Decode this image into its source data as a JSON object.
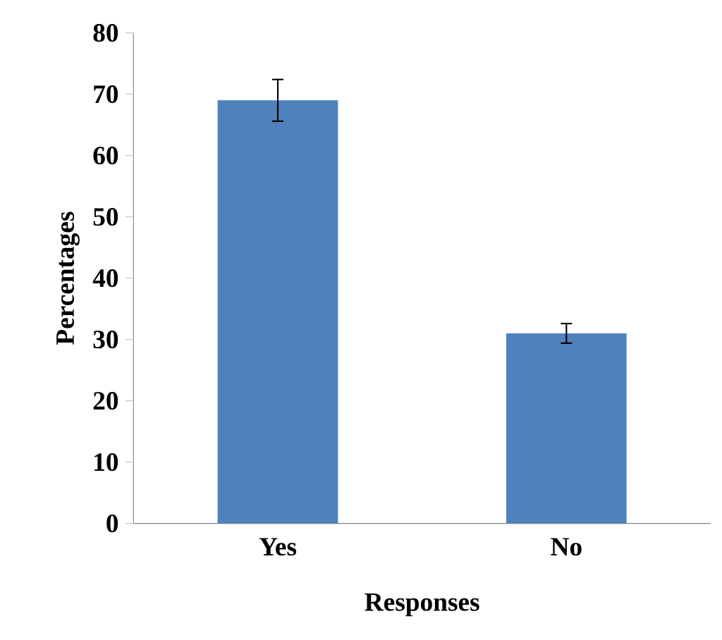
{
  "chart_data": {
    "type": "bar",
    "xlabel": "Responses",
    "ylabel": "Percentages",
    "categories": [
      "Yes",
      "No"
    ],
    "values": [
      69,
      31
    ],
    "errors": [
      3.4,
      1.6
    ],
    "color": "#4f81bd",
    "ylim": [
      0,
      80
    ],
    "yticks": [
      0,
      10,
      20,
      30,
      40,
      50,
      60,
      70,
      80
    ],
    "grid": false
  }
}
